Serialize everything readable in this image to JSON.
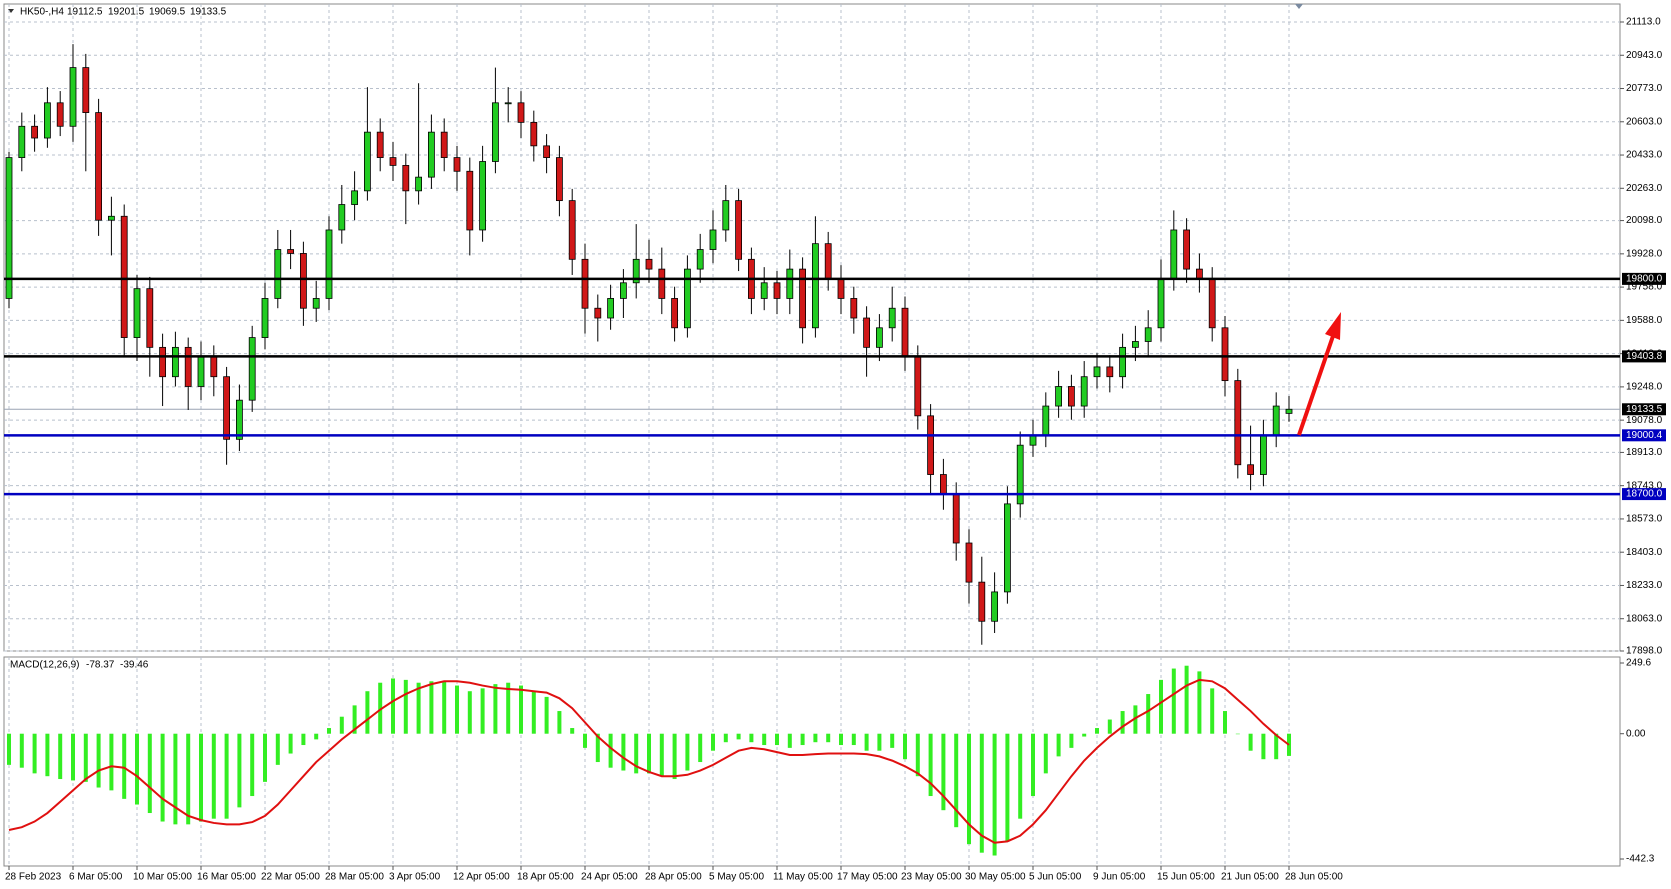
{
  "chart_data": [
    {
      "type": "candlestick",
      "title": "HK50-,H4",
      "categories": [
        "28 Feb 2023",
        null,
        null,
        null,
        null,
        "6 Mar 05:00",
        null,
        null,
        null,
        null,
        "10 Mar 05:00",
        null,
        null,
        null,
        null,
        "16 Mar 05:00",
        null,
        null,
        null,
        null,
        "22 Mar 05:00",
        null,
        null,
        null,
        null,
        "28 Mar 05:00",
        null,
        null,
        null,
        null,
        "3 Apr 05:00",
        null,
        null,
        null,
        null,
        "12 Apr 05:00",
        null,
        null,
        null,
        null,
        "18 Apr 05:00",
        null,
        null,
        null,
        null,
        "24 Apr 05:00",
        null,
        null,
        null,
        null,
        "28 Apr 05:00",
        null,
        null,
        null,
        null,
        "5 May 05:00",
        null,
        null,
        null,
        null,
        "11 May 05:00",
        null,
        null,
        null,
        null,
        "17 May 05:00",
        null,
        null,
        null,
        null,
        "23 May 05:00",
        null,
        null,
        null,
        null,
        "30 May 05:00",
        null,
        null,
        null,
        null,
        "5 Jun 05:00",
        null,
        null,
        null,
        null,
        "9 Jun 05:00",
        null,
        null,
        null,
        null,
        "15 Jun 05:00",
        null,
        null,
        null,
        null,
        "21 Jun 05:00",
        null,
        null,
        null,
        null,
        "28 Jun 05:00"
      ],
      "ohlc": [
        [
          19700,
          20450,
          19650,
          20420
        ],
        [
          20420,
          20650,
          20350,
          20580
        ],
        [
          20580,
          20640,
          20450,
          20520
        ],
        [
          20520,
          20780,
          20470,
          20700
        ],
        [
          20700,
          20760,
          20530,
          20580
        ],
        [
          20580,
          21000,
          20500,
          20880
        ],
        [
          20880,
          20950,
          20350,
          20650
        ],
        [
          20650,
          20720,
          20020,
          20100
        ],
        [
          20100,
          20220,
          19920,
          20120
        ],
        [
          20120,
          20180,
          19400,
          19500
        ],
        [
          19500,
          19820,
          19380,
          19750
        ],
        [
          19750,
          19810,
          19300,
          19450
        ],
        [
          19450,
          19520,
          19150,
          19300
        ],
        [
          19300,
          19530,
          19250,
          19450
        ],
        [
          19450,
          19500,
          19130,
          19250
        ],
        [
          19250,
          19480,
          19180,
          19400
        ],
        [
          19400,
          19460,
          19200,
          19300
        ],
        [
          19300,
          19350,
          18850,
          18980
        ],
        [
          18980,
          19260,
          18920,
          19180
        ],
        [
          19180,
          19560,
          19120,
          19500
        ],
        [
          19500,
          19780,
          19440,
          19700
        ],
        [
          19700,
          20050,
          19650,
          19950
        ],
        [
          19950,
          20050,
          19850,
          19930
        ],
        [
          19930,
          19990,
          19560,
          19650
        ],
        [
          19650,
          19790,
          19580,
          19700
        ],
        [
          19700,
          20120,
          19640,
          20050
        ],
        [
          20050,
          20280,
          19980,
          20180
        ],
        [
          20180,
          20350,
          20100,
          20250
        ],
        [
          20250,
          20780,
          20200,
          20550
        ],
        [
          20550,
          20620,
          20350,
          20420
        ],
        [
          20420,
          20500,
          20300,
          20380
        ],
        [
          20380,
          20440,
          20080,
          20250
        ],
        [
          20250,
          20800,
          20180,
          20320
        ],
        [
          20320,
          20640,
          20260,
          20550
        ],
        [
          20550,
          20620,
          20350,
          20420
        ],
        [
          20420,
          20480,
          20250,
          20350
        ],
        [
          20350,
          20420,
          19920,
          20050
        ],
        [
          20050,
          20480,
          19990,
          20400
        ],
        [
          20400,
          20880,
          20340,
          20700
        ],
        [
          20700,
          20780,
          20600,
          20700
        ],
        [
          20700,
          20760,
          20520,
          20600
        ],
        [
          20600,
          20660,
          20400,
          20480
        ],
        [
          20480,
          20540,
          20340,
          20420
        ],
        [
          20420,
          20480,
          20120,
          20200
        ],
        [
          20200,
          20260,
          19820,
          19900
        ],
        [
          19900,
          19980,
          19520,
          19650
        ],
        [
          19650,
          19720,
          19480,
          19600
        ],
        [
          19600,
          19770,
          19540,
          19700
        ],
        [
          19700,
          19850,
          19600,
          19780
        ],
        [
          19780,
          20080,
          19700,
          19900
        ],
        [
          19900,
          20000,
          19780,
          19850
        ],
        [
          19850,
          19960,
          19620,
          19700
        ],
        [
          19700,
          19760,
          19480,
          19550
        ],
        [
          19550,
          19920,
          19500,
          19850
        ],
        [
          19850,
          20030,
          19780,
          19950
        ],
        [
          19950,
          20150,
          19880,
          20050
        ],
        [
          20050,
          20280,
          19990,
          20200
        ],
        [
          20200,
          20260,
          19840,
          19900
        ],
        [
          19900,
          19960,
          19620,
          19700
        ],
        [
          19700,
          19860,
          19640,
          19780
        ],
        [
          19780,
          19840,
          19620,
          19700
        ],
        [
          19700,
          19950,
          19620,
          19850
        ],
        [
          19850,
          19910,
          19470,
          19550
        ],
        [
          19550,
          20120,
          19500,
          19980
        ],
        [
          19980,
          20040,
          19740,
          19800
        ],
        [
          19800,
          19870,
          19620,
          19700
        ],
        [
          19700,
          19760,
          19520,
          19600
        ],
        [
          19600,
          19660,
          19300,
          19450
        ],
        [
          19450,
          19620,
          19380,
          19550
        ],
        [
          19550,
          19760,
          19480,
          19650
        ],
        [
          19650,
          19710,
          19330,
          19400
        ],
        [
          19400,
          19460,
          19030,
          19100
        ],
        [
          19100,
          19160,
          18700,
          18800
        ],
        [
          18800,
          18880,
          18620,
          18700
        ],
        [
          18700,
          18760,
          18360,
          18450
        ],
        [
          18450,
          18520,
          18140,
          18250
        ],
        [
          18250,
          18380,
          17930,
          18050
        ],
        [
          18050,
          18300,
          17990,
          18200
        ],
        [
          18200,
          18740,
          18140,
          18650
        ],
        [
          18650,
          19020,
          18580,
          18950
        ],
        [
          18950,
          19080,
          18890,
          19000
        ],
        [
          19000,
          19220,
          18940,
          19150
        ],
        [
          19150,
          19330,
          19090,
          19250
        ],
        [
          19250,
          19310,
          19080,
          19150
        ],
        [
          19150,
          19380,
          19090,
          19300
        ],
        [
          19300,
          19420,
          19240,
          19350
        ],
        [
          19350,
          19410,
          19220,
          19300
        ],
        [
          19300,
          19520,
          19240,
          19450
        ],
        [
          19450,
          19560,
          19380,
          19480
        ],
        [
          19480,
          19640,
          19400,
          19550
        ],
        [
          19550,
          19900,
          19480,
          19800
        ],
        [
          19800,
          20150,
          19740,
          20050
        ],
        [
          20050,
          20110,
          19780,
          19850
        ],
        [
          19850,
          19930,
          19730,
          19800
        ],
        [
          19800,
          19860,
          19480,
          19550
        ],
        [
          19550,
          19610,
          19200,
          19280
        ],
        [
          19280,
          19340,
          18780,
          18850
        ],
        [
          18850,
          19050,
          18720,
          18800
        ],
        [
          18800,
          19080,
          18740,
          19000
        ],
        [
          19000,
          19220,
          18940,
          19150
        ],
        [
          19112.5,
          19201.5,
          19069.5,
          19133.5
        ]
      ],
      "up_color": "#22cc22",
      "down_color": "#d01818",
      "ylim": [
        17898,
        21113
      ],
      "yticks": [
        {
          "value": 21113,
          "label": "21113.0"
        },
        {
          "value": 20943,
          "label": "20943.0"
        },
        {
          "value": 20773,
          "label": "20773.0"
        },
        {
          "value": 20603,
          "label": "20603.0"
        },
        {
          "value": 20433,
          "label": "20433.0"
        },
        {
          "value": 20263,
          "label": "20263.0"
        },
        {
          "value": 20098,
          "label": "20098.0"
        },
        {
          "value": 19928,
          "label": "19928.0"
        },
        {
          "value": 19758,
          "label": "19758.0"
        },
        {
          "value": 19588,
          "label": "19588.0"
        },
        {
          "value": 19418,
          "label": "19418.0"
        },
        {
          "value": 19248,
          "label": "19248.0"
        },
        {
          "value": 19078,
          "label": "19078.0"
        },
        {
          "value": 18913,
          "label": "18913.0"
        },
        {
          "value": 18743,
          "label": "18743.0"
        },
        {
          "value": 18573,
          "label": "18573.0"
        },
        {
          "value": 18403,
          "label": "18403.0"
        },
        {
          "value": 18233,
          "label": "18233.0"
        },
        {
          "value": 18063,
          "label": "18063.0"
        },
        {
          "value": 17898,
          "label": "17898.0"
        }
      ],
      "grid": true,
      "levels": [
        {
          "value": 19800,
          "label": "19800.0",
          "color": "#000000"
        },
        {
          "value": 19403.8,
          "label": "19403.8",
          "color": "#000000"
        },
        {
          "value": 19000.4,
          "label": "19000.4",
          "color": "#0000c0"
        },
        {
          "value": 18700,
          "label": "18700.0",
          "color": "#0000c0"
        }
      ]
    },
    {
      "type": "macd",
      "title": "MACD(12,26,9)",
      "ylim": [
        -442.3,
        249.6
      ],
      "yticks": [
        249.6,
        {
          "value": 0,
          "label": "0.00"
        },
        -442.3
      ],
      "series": [
        {
          "color": "#33ee22",
          "values": [
            -110,
            -120,
            -140,
            -150,
            -160,
            -165,
            -170,
            -190,
            -200,
            -230,
            -250,
            -280,
            -310,
            -320,
            -320,
            -310,
            -300,
            -300,
            -260,
            -220,
            -170,
            -110,
            -70,
            -40,
            -20,
            20,
            60,
            100,
            150,
            180,
            195,
            190,
            180,
            185,
            185,
            170,
            150,
            160,
            175,
            180,
            170,
            150,
            130,
            80,
            20,
            -50,
            -100,
            -120,
            -130,
            -140,
            -140,
            -150,
            -160,
            -130,
            -100,
            -60,
            -30,
            -20,
            -30,
            -40,
            -40,
            -50,
            -40,
            -30,
            -30,
            -40,
            -40,
            -60,
            -60,
            -50,
            -90,
            -150,
            -220,
            -270,
            -330,
            -390,
            -420,
            -430,
            -380,
            -300,
            -220,
            -140,
            -80,
            -50,
            -10,
            20,
            50,
            80,
            100,
            140,
            190,
            230,
            240,
            220,
            160,
            80,
            0,
            -60,
            -90,
            -90,
            -78.37
          ]
        },
        {
          "color": "#e01010",
          "values": [
            -340,
            -330,
            -310,
            -280,
            -240,
            -200,
            -160,
            -130,
            -115,
            -120,
            -150,
            -190,
            -230,
            -260,
            -290,
            -305,
            -315,
            -320,
            -320,
            -312,
            -290,
            -250,
            -200,
            -150,
            -100,
            -60,
            -20,
            15,
            50,
            85,
            115,
            140,
            160,
            175,
            185,
            185,
            180,
            170,
            162,
            158,
            155,
            150,
            145,
            125,
            90,
            40,
            -10,
            -50,
            -85,
            -115,
            -135,
            -150,
            -150,
            -145,
            -130,
            -110,
            -85,
            -60,
            -50,
            -55,
            -65,
            -75,
            -75,
            -72,
            -70,
            -70,
            -70,
            -72,
            -80,
            -95,
            -115,
            -140,
            -175,
            -220,
            -270,
            -320,
            -360,
            -385,
            -380,
            -360,
            -320,
            -270,
            -210,
            -150,
            -95,
            -50,
            -10,
            25,
            55,
            80,
            110,
            140,
            170,
            190,
            185,
            160,
            120,
            80,
            35,
            -5,
            -39.46
          ]
        }
      ]
    }
  ]
}
